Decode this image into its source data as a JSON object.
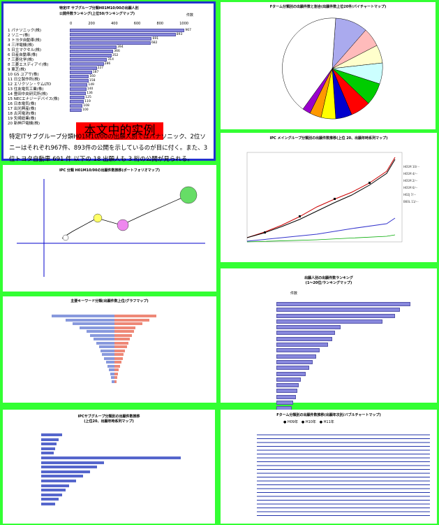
{
  "p1": {
    "title1": "特定IT サブグループ分類H01M10/00の出願人別",
    "title2": "公開件数ランキング(上位50/ランキングマップ)",
    "unit": "件数",
    "axis": [
      "0",
      "200",
      "400",
      "600",
      "800",
      "1000"
    ],
    "names": [
      "1 パナソニック(株)",
      "2 ソニー(株)",
      "3 トヨタ自動車(株)",
      "4 三洋電機(株)",
      "5 日立マクセル(株)",
      "6 日産自動車(株)",
      "7 三菱化学(株)",
      "8 三菱エスディアイ(株)",
      "9 東芝(株)",
      "10 GS ユアサ(株)",
      "11 日立製作所(株)",
      "12 エリクソン・ケムLTD",
      "13 住友電気工業(株)",
      "14 豊田中央研究所(株)",
      "15 NECエナジーデバイス(株)",
      "16 日本電気(株)",
      "17 出光興産(株)",
      "18 古河電池(株)",
      "19 矢崎総業(株)",
      "20 新神戸電機(株)"
    ],
    "values": [
      967,
      893,
      691,
      682,
      394,
      366,
      352,
      314,
      286,
      227,
      187,
      160,
      158,
      149,
      140,
      136,
      125,
      119,
      108,
      100
    ],
    "overlay": "本文中的实例",
    "body": "特定ITサブグループ分類H01M10/00の出願人別ではパナソニック、2位ソニーはそれぞれ967件、893件の公開を示しているのが目に付く。また、3位トヨタ自動車 691 件 以下の 18 出願人も 3 桁の公開が見られる。"
  },
  "p2": {
    "title": "Fターム分類別の出願件数と割合(出願件数上位20件/パイチャートマップ)"
  },
  "p3": {
    "title": "IPC メイングループ分類別の出願件数推移(上位 20、出願年時系列マップ)"
  },
  "p4": {
    "title": "IPC 分類 H01M10/00の出願件数推移(ポートフォリオマップ)"
  },
  "p5": {
    "title": "出願人別の出願件数ランキング",
    "sub": "(1〜20位/ランキングマップ)",
    "legend": "件数"
  },
  "p6": {
    "title": "主要キーワード分類(出願件数上位/グラフマップ)"
  },
  "p7": {
    "title": "IPCサブグループ分類別の出願件数推移",
    "sub": "(上位20、出願年時系列マップ)"
  },
  "p8": {
    "title": "Fターム分類別の出願件数推移(出願年次別/バブルチャートマップ)",
    "legend": [
      "H09年",
      "H10年",
      "H11年"
    ]
  }
}
